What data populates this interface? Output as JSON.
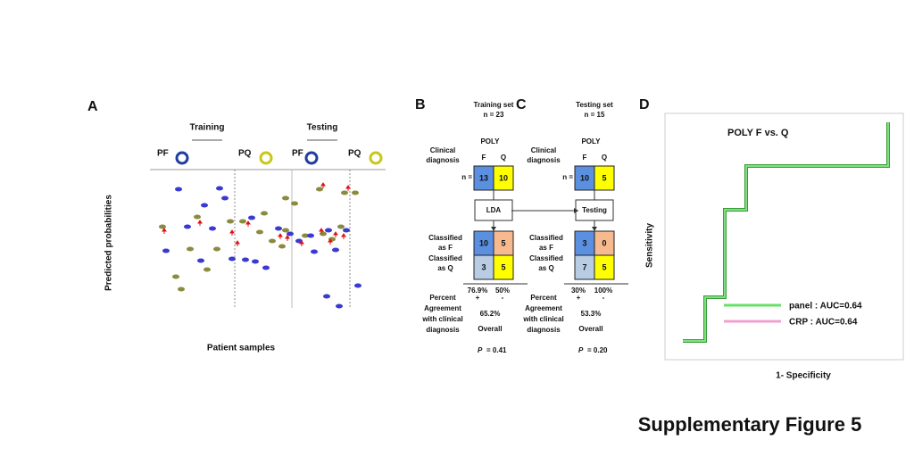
{
  "panel_a": {
    "label": "A",
    "training": "Training",
    "testing": "Testing",
    "groups": [
      "PF",
      "PQ",
      "PF",
      "PQ"
    ],
    "y_label": "Predicted probabilities",
    "x_label": "Patient samples"
  },
  "panel_b": {
    "label": "B",
    "set": "Training set",
    "n": "n = 23",
    "poly": "POLY",
    "clinical": [
      "Clinical",
      "diagnosis"
    ],
    "cols": [
      "F",
      "Q"
    ],
    "n_row": "n =",
    "n_cells": [
      "13",
      "10"
    ],
    "method": "LDA",
    "classified_f": [
      "Classified",
      "as F"
    ],
    "classified_q": [
      "Classified",
      "as Q"
    ],
    "matrix": [
      [
        "10",
        "5"
      ],
      [
        "3",
        "5"
      ]
    ],
    "percents": [
      "76.9%",
      "50%"
    ],
    "signs": [
      "+",
      "-"
    ],
    "agreement": [
      "Percent",
      "Agreement",
      "with clinical",
      "diagnosis"
    ],
    "overall_value": "65.2%",
    "overall": "Overall",
    "p": {
      "symbol": "P",
      "value": "= 0.41"
    }
  },
  "panel_c": {
    "label": "C",
    "set": "Testing set",
    "n": "n = 15",
    "poly": "POLY",
    "clinical": [
      "Clinical",
      "diagnosis"
    ],
    "cols": [
      "F",
      "Q"
    ],
    "n_row": "n =",
    "n_cells": [
      "10",
      "5"
    ],
    "method": "Testing",
    "classified_f": [
      "Classified",
      "as F"
    ],
    "classified_q": [
      "Classified",
      "as Q"
    ],
    "matrix": [
      [
        "3",
        "0"
      ],
      [
        "7",
        "5"
      ]
    ],
    "percents": [
      "30%",
      "100%"
    ],
    "signs": [
      "+",
      "-"
    ],
    "agreement": [
      "Percent",
      "Agreement",
      "with clinical",
      "diagnosis"
    ],
    "overall_value": "53.3%",
    "overall": "Overall",
    "p": {
      "symbol": "P",
      "value": "= 0.20"
    }
  },
  "panel_d": {
    "label": "D",
    "title": "POLY F vs. Q",
    "y_label": "Sensitivity",
    "x_label": "1- Specificity",
    "legend": [
      "panel : AUC=0.64",
      "CRP :   AUC=0.64"
    ]
  },
  "caption": "Supplementary Figure 5"
}
